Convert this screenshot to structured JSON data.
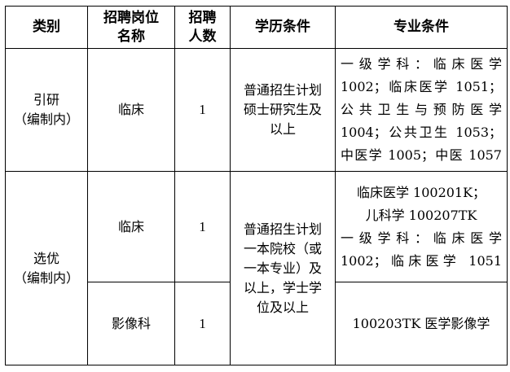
{
  "headers": {
    "category": "类别",
    "position_line1": "招聘岗位",
    "position_line2": "名称",
    "count_line1": "招聘",
    "count_line2": "人数",
    "education": "学历条件",
    "major": "专业条件"
  },
  "rows": [
    {
      "category_line1": "引研",
      "category_line2": "（编制内）",
      "position": "临床",
      "count": "1",
      "education_lines": [
        "普通招生计划",
        "硕士研究生及",
        "以上"
      ],
      "major_lines": [
        "一级学科：临床医学",
        "1002；临床医学 1051；",
        "公共卫生与预防医学",
        "1004；公共卫生 1053；",
        "中医学 1005；中医 1057"
      ]
    },
    {
      "category_line1": "选优",
      "category_line2": "（编制内）",
      "position": "临床",
      "count": "1",
      "education_lines": [
        "普通招生计划",
        "一本院校（或",
        "一本专业）及",
        "以上，学士学",
        "位及以上"
      ],
      "major_lines": [
        "临床医学 100201K；",
        "儿科学 100207TK",
        "一级学科：临床医学",
        "1002；临床医学 1051"
      ]
    },
    {
      "position": "影像科",
      "count": "1",
      "major_lines": [
        "100203TK 医学影像学"
      ]
    }
  ]
}
